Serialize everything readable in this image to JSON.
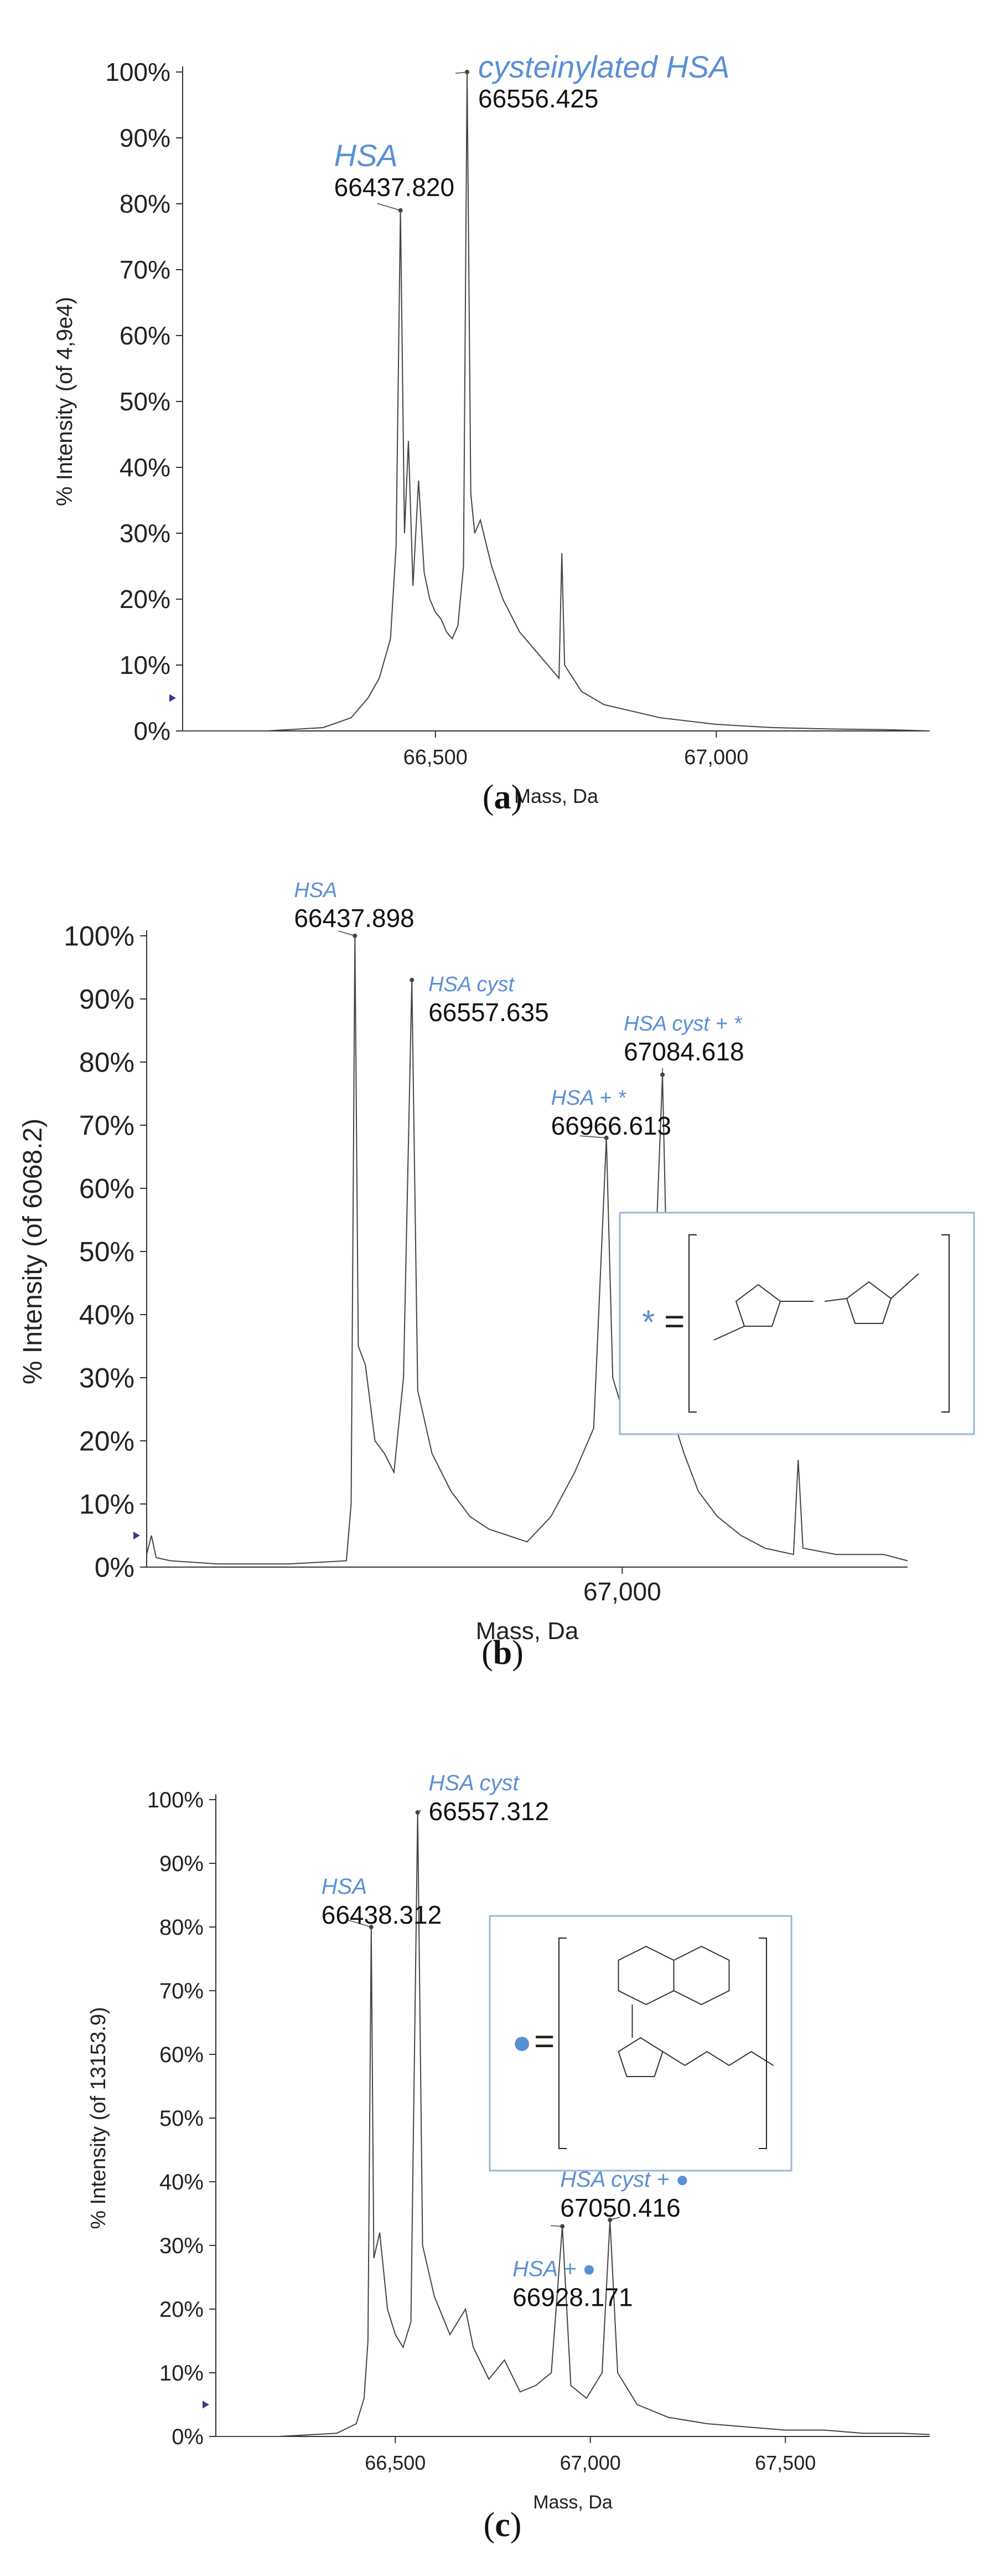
{
  "chart_data": [
    {
      "type": "line",
      "panel": "a",
      "caption": "a",
      "xlabel": "Mass, Da",
      "ylabel": "% Intensity (of 4,9e4)",
      "xlim": [
        66050,
        67380
      ],
      "ylim": [
        0,
        100
      ],
      "x_ticks": [
        66500,
        67000
      ],
      "x_tick_labels": [
        "66,500",
        "67,000"
      ],
      "y_ticks": [
        0,
        10,
        20,
        30,
        40,
        50,
        60,
        70,
        80,
        90,
        100
      ],
      "y_tick_labels": [
        "0%",
        "10%",
        "20%",
        "30%",
        "40%",
        "50%",
        "60%",
        "70%",
        "80%",
        "90%",
        "100%"
      ],
      "annotations": [
        {
          "label": "HSA",
          "mass_label": "66437.820",
          "x": 66437.82,
          "y": 79
        },
        {
          "label": "cysteinylated HSA",
          "mass_label": "66556.425",
          "x": 66556.425,
          "y": 100
        }
      ],
      "series": [
        {
          "x": [
            66050,
            66200,
            66300,
            66350,
            66380,
            66400,
            66420,
            66430,
            66437.8,
            66445,
            66452,
            66460,
            66470,
            66480,
            66490,
            66500,
            66510,
            66520,
            66530,
            66540,
            66550,
            66556.4,
            66563,
            66570,
            66580,
            66600,
            66620,
            66650,
            66680,
            66700,
            66720,
            66725,
            66730,
            66760,
            66800,
            66850,
            66900,
            67000,
            67100,
            67200,
            67300,
            67380
          ],
          "y": [
            0,
            0,
            0.5,
            2,
            5,
            8,
            14,
            28,
            79,
            30,
            44,
            22,
            38,
            24,
            20,
            18,
            17,
            15,
            14,
            16,
            25,
            100,
            36,
            30,
            32,
            25,
            20,
            15,
            12,
            10,
            8,
            27,
            10,
            6,
            4,
            3,
            2,
            1,
            0.5,
            0.3,
            0.2,
            0
          ]
        }
      ]
    },
    {
      "type": "line",
      "panel": "b",
      "caption": "b",
      "xlabel": "Mass, Da",
      "ylabel": "% Intensity (of 6068.2)",
      "xlim": [
        66000,
        67600
      ],
      "ylim": [
        0,
        100
      ],
      "x_ticks": [
        67000
      ],
      "x_tick_labels": [
        "67,000"
      ],
      "y_ticks": [
        0,
        10,
        20,
        30,
        40,
        50,
        60,
        70,
        80,
        90,
        100
      ],
      "y_tick_labels": [
        "0%",
        "10%",
        "20%",
        "30%",
        "40%",
        "50%",
        "60%",
        "70%",
        "80%",
        "90%",
        "100%"
      ],
      "annotations": [
        {
          "label": "HSA",
          "mass_label": "66437.898",
          "x": 66437.898,
          "y": 100
        },
        {
          "label": "HSA cyst",
          "mass_label": "66557.635",
          "x": 66557.635,
          "y": 93
        },
        {
          "label": "HSA + *",
          "mass_label": "66966.613",
          "x": 66966.613,
          "y": 68
        },
        {
          "label": "HSA cyst + *",
          "mass_label": "67084.618",
          "x": 67084.618,
          "y": 78
        }
      ],
      "legend_symbol": "*",
      "legend_text": "=",
      "series": [
        {
          "x": [
            66000,
            66010,
            66020,
            66050,
            66150,
            66300,
            66420,
            66430,
            66437.9,
            66445,
            66460,
            66480,
            66500,
            66520,
            66540,
            66557.6,
            66570,
            66600,
            66640,
            66680,
            66720,
            66760,
            66800,
            66850,
            66900,
            66940,
            66966.6,
            66980,
            67000,
            67030,
            67060,
            67084.6,
            67100,
            67130,
            67160,
            67200,
            67250,
            67300,
            67360,
            67370,
            67380,
            67450,
            67550,
            67600
          ],
          "y": [
            2,
            5,
            1.5,
            1,
            0.5,
            0.5,
            1,
            10,
            100,
            35,
            32,
            20,
            18,
            15,
            30,
            93,
            28,
            18,
            12,
            8,
            6,
            5,
            4,
            8,
            15,
            22,
            68,
            30,
            25,
            22,
            30,
            78,
            25,
            18,
            12,
            8,
            5,
            3,
            2,
            17,
            3,
            2,
            2,
            1
          ]
        }
      ]
    },
    {
      "type": "line",
      "panel": "c",
      "caption": "c",
      "xlabel": "Mass, Da",
      "ylabel": "% Intensity (of 13153.9)",
      "xlim": [
        66040,
        67870
      ],
      "ylim": [
        0,
        100
      ],
      "x_ticks": [
        66500,
        67000,
        67500
      ],
      "x_tick_labels": [
        "66,500",
        "67,000",
        "67,500"
      ],
      "y_ticks": [
        0,
        10,
        20,
        30,
        40,
        50,
        60,
        70,
        80,
        90,
        100
      ],
      "y_tick_labels": [
        "0%",
        "10%",
        "20%",
        "30%",
        "40%",
        "50%",
        "60%",
        "70%",
        "80%",
        "90%",
        "100%"
      ],
      "annotations": [
        {
          "label": "HSA",
          "mass_label": "66438.312",
          "x": 66438.312,
          "y": 80
        },
        {
          "label": "HSA cyst",
          "mass_label": "66557.312",
          "x": 66557.312,
          "y": 98
        },
        {
          "label": "HSA + ●",
          "mass_label": "66928.171",
          "x": 66928.171,
          "y": 33
        },
        {
          "label": "HSA cyst + ●",
          "mass_label": "67050.416",
          "x": 67050.416,
          "y": 34
        }
      ],
      "legend_symbol": "●",
      "legend_text": "=",
      "series": [
        {
          "x": [
            66040,
            66200,
            66350,
            66400,
            66420,
            66430,
            66438.3,
            66445,
            66460,
            66480,
            66500,
            66520,
            66540,
            66557.3,
            66570,
            66600,
            66640,
            66680,
            66700,
            66740,
            66780,
            66820,
            66860,
            66900,
            66928.2,
            66950,
            66990,
            67030,
            67050.4,
            67070,
            67120,
            67200,
            67300,
            67400,
            67500,
            67600,
            67700,
            67800,
            67870
          ],
          "y": [
            0,
            0,
            0.5,
            2,
            6,
            15,
            80,
            28,
            32,
            20,
            16,
            14,
            18,
            98,
            30,
            22,
            16,
            20,
            14,
            9,
            12,
            7,
            8,
            10,
            33,
            8,
            6,
            10,
            34,
            10,
            5,
            3,
            2,
            1.5,
            1,
            1,
            0.5,
            0.5,
            0.3
          ]
        }
      ]
    }
  ]
}
